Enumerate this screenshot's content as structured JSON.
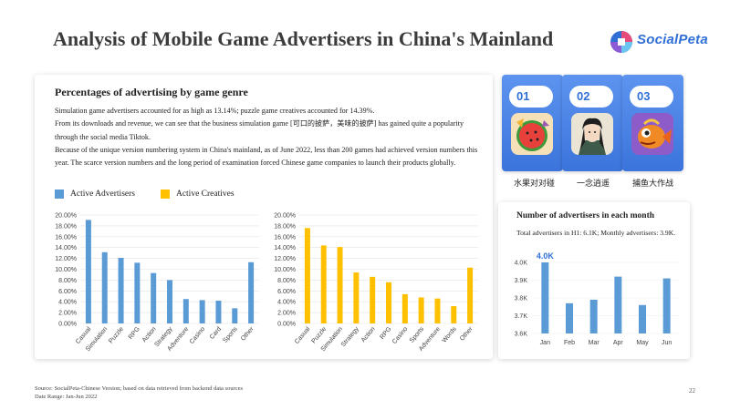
{
  "page": {
    "title": "Analysis of Mobile Game Advertisers in China's Mainland",
    "page_number": "22"
  },
  "logo": {
    "text": "SocialPeta"
  },
  "main_card": {
    "title": "Percentages of advertising by game genre",
    "paragraphs": [
      "Simulation game advertisers accounted for as high as 13.14%; puzzle game creatives accounted for 14.39%.",
      "From its downloads and revenue, we can see that the business simulation game [可口的披萨，美味的披萨] has gained quite a popularity through the social media Tiktok.",
      "Because of the unique version numbering system in China's mainland, as of June 2022, less than 200 games had achieved version numbers this year. The scarce version numbers and the long period of examination forced Chinese game companies to launch their products globally."
    ],
    "legend": [
      {
        "label": "Active Advertisers",
        "color": "#5b9bd5"
      },
      {
        "label": "Active Creatives",
        "color": "#ffc000"
      }
    ]
  },
  "top_games": [
    {
      "rank": "01",
      "name": "水果对对碰",
      "icon": "watermelon-icon"
    },
    {
      "rank": "02",
      "name": "一念逍遥",
      "icon": "character-icon"
    },
    {
      "rank": "03",
      "name": "捕鱼大作战",
      "icon": "fish-icon"
    }
  ],
  "month_card": {
    "title": "Number of advertisers in each month",
    "description": "Total advertisers in H1: 6.1K; Monthly advertisers: 3.9K."
  },
  "footer": {
    "source": "Source: SocialPeta-Chinese Version; based on data retrieved from backend data sources",
    "date_range": "Date Range: Jan-Jun 2022"
  },
  "chart_data": [
    {
      "type": "bar",
      "title": "",
      "series": [
        {
          "name": "Active Advertisers",
          "color": "#5b9bd5"
        }
      ],
      "categories": [
        "Casual",
        "Simulation",
        "Puzzle",
        "RPG",
        "Action",
        "Strategy",
        "Adventure",
        "Casino",
        "Card",
        "Sports",
        "Other"
      ],
      "values": [
        19.1,
        13.14,
        12.1,
        11.2,
        9.3,
        8.0,
        4.5,
        4.3,
        4.2,
        2.8,
        11.3
      ],
      "ylim": [
        0,
        20
      ],
      "yticks": [
        "0.00%",
        "2.00%",
        "4.00%",
        "6.00%",
        "8.00%",
        "10.00%",
        "12.00%",
        "14.00%",
        "16.00%",
        "18.00%",
        "20.00%"
      ],
      "grid": true
    },
    {
      "type": "bar",
      "title": "",
      "series": [
        {
          "name": "Active Creatives",
          "color": "#ffc000"
        }
      ],
      "categories": [
        "Casual",
        "Puzzle",
        "Simulation",
        "Strategy",
        "Action",
        "RPG",
        "Casino",
        "Sports",
        "Adventure",
        "Words",
        "Other"
      ],
      "values": [
        17.6,
        14.39,
        14.1,
        9.4,
        8.6,
        7.6,
        5.4,
        4.8,
        4.6,
        3.2,
        10.3
      ],
      "ylim": [
        0,
        20
      ],
      "yticks": [
        "0.00%",
        "2.00%",
        "4.00%",
        "6.00%",
        "8.00%",
        "10.00%",
        "12.00%",
        "14.00%",
        "16.00%",
        "18.00%",
        "20.00%"
      ],
      "grid": true
    },
    {
      "type": "bar",
      "title": "Number of advertisers in each month",
      "series": [
        {
          "name": "Advertisers",
          "color": "#5b9bd5"
        }
      ],
      "categories": [
        "Jan",
        "Feb",
        "Mar",
        "Apr",
        "May",
        "Jun"
      ],
      "values": [
        4.0,
        3.77,
        3.79,
        3.92,
        3.76,
        3.91
      ],
      "ylim": [
        3.6,
        4.0
      ],
      "yticks": [
        "3.6K",
        "3.7K",
        "3.8K",
        "3.9K",
        "4.0K"
      ],
      "annotations": [
        {
          "category": "Jan",
          "text": "4.0K"
        }
      ],
      "grid": true
    }
  ]
}
